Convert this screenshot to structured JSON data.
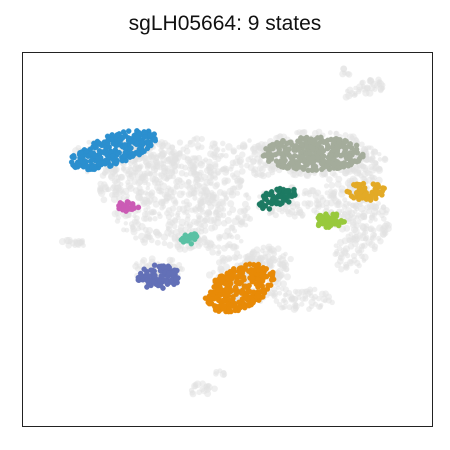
{
  "chart_data": {
    "type": "scatter",
    "title": "sgLH05664: 9 states",
    "xlabel": "",
    "ylabel": "",
    "xlim": [
      0,
      100
    ],
    "ylim": [
      0,
      100
    ],
    "grid": false,
    "legend": "none",
    "background_color": "#e2e2e2",
    "series": [
      {
        "color": "#2b8fcf",
        "cluster": {
          "center": [
            22,
            74
          ],
          "radius": [
            11,
            4
          ],
          "tilt": -18
        }
      },
      {
        "color": "#a4ac9b",
        "cluster": {
          "center": [
            71,
            73
          ],
          "radius": [
            12.5,
            4.5
          ],
          "tilt": 0
        }
      },
      {
        "color": "#e3aa26",
        "cluster": {
          "center": [
            84,
            63
          ],
          "radius": [
            5,
            2.5
          ],
          "tilt": 0
        }
      },
      {
        "color": "#1d7a62",
        "cluster": {
          "center": [
            62,
            61
          ],
          "radius": [
            5,
            2.4
          ],
          "tilt": -20
        }
      },
      {
        "color": "#cb5bb5",
        "cluster": {
          "center": [
            26,
            59
          ],
          "radius": [
            2.8,
            1.6
          ],
          "tilt": 0
        }
      },
      {
        "color": "#98c93c",
        "cluster": {
          "center": [
            75,
            55
          ],
          "radius": [
            4,
            2
          ],
          "tilt": 0
        }
      },
      {
        "color": "#5ac1a4",
        "cluster": {
          "center": [
            41,
            50
          ],
          "radius": [
            2.5,
            1.6
          ],
          "tilt": 0
        }
      },
      {
        "color": "#6370b7",
        "cluster": {
          "center": [
            33,
            40
          ],
          "radius": [
            5.5,
            3.2
          ],
          "tilt": 0
        }
      },
      {
        "color": "#e88a07",
        "cluster": {
          "center": [
            53,
            37
          ],
          "radius": [
            9,
            5.5
          ],
          "tilt": -25
        }
      }
    ]
  }
}
